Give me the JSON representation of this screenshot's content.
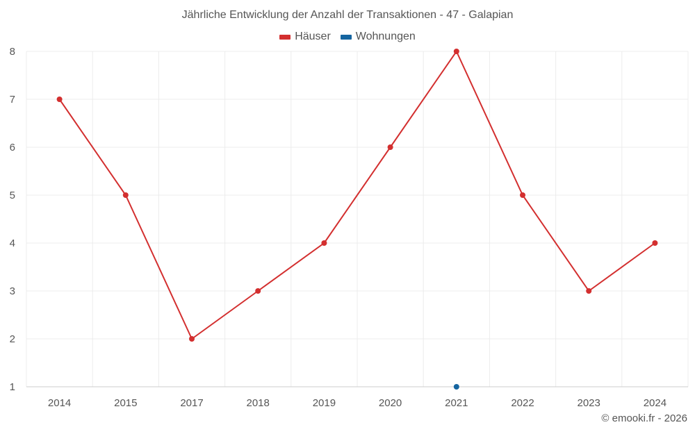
{
  "chart_data": {
    "type": "line",
    "title": "Jährliche Entwicklung der Anzahl der Transaktionen - 47 - Galapian",
    "categories": [
      "2014",
      "2015",
      "2017",
      "2018",
      "2019",
      "2020",
      "2021",
      "2022",
      "2023",
      "2024"
    ],
    "series": [
      {
        "name": "Häuser",
        "color": "#d32f2f",
        "values": [
          7,
          5,
          2,
          3,
          4,
          6,
          8,
          5,
          3,
          4
        ]
      },
      {
        "name": "Wohnungen",
        "color": "#1565a0",
        "values": [
          null,
          null,
          null,
          null,
          null,
          null,
          1,
          null,
          null,
          null
        ]
      }
    ],
    "ylim": [
      1,
      8
    ],
    "yticks": [
      1,
      2,
      3,
      4,
      5,
      6,
      7,
      8
    ],
    "grid": true,
    "legend_position": "top-center"
  },
  "credit": "© emooki.fr - 2026"
}
